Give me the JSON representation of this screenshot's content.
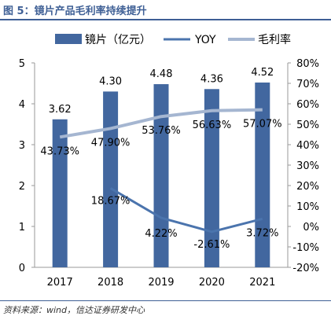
{
  "title": "图 5：镜片产品毛利率持续提升",
  "source": "资料来源：wind，信达证券研发中心",
  "colors": {
    "bar": "#42679f",
    "yoy": "#4b74ad",
    "margin": "#a5b6d1",
    "title": "#3e5f95"
  },
  "chart_data": {
    "type": "bar",
    "categories": [
      "2017",
      "2018",
      "2019",
      "2020",
      "2021"
    ],
    "y_left": {
      "min": 0,
      "max": 5,
      "ticks": [
        "0",
        "1",
        "2",
        "3",
        "4",
        "5"
      ]
    },
    "y_right": {
      "min": -20,
      "max": 80,
      "ticks": [
        "-20%",
        "-10%",
        "0%",
        "10%",
        "20%",
        "30%",
        "40%",
        "50%",
        "60%",
        "70%",
        "80%"
      ]
    },
    "legend_position": "top",
    "grid": false,
    "series": [
      {
        "name": "镜片（亿元）",
        "type": "bar",
        "axis": "left",
        "values": [
          3.62,
          4.3,
          4.48,
          4.36,
          4.52
        ],
        "labels": [
          "3.62",
          "4.30",
          "4.48",
          "4.36",
          "4.52"
        ]
      },
      {
        "name": "YOY",
        "type": "line",
        "axis": "right",
        "values": [
          null,
          18.67,
          4.22,
          -2.61,
          3.72
        ],
        "labels": [
          "",
          "18.67%",
          "4.22%",
          "-2.61%",
          "3.72%"
        ]
      },
      {
        "name": "毛利率",
        "type": "line",
        "axis": "right",
        "values": [
          43.73,
          47.9,
          53.76,
          56.63,
          57.07
        ],
        "labels": [
          "43.73%",
          "47.90%",
          "53.76%",
          "56.63%",
          "57.07%"
        ]
      }
    ]
  }
}
